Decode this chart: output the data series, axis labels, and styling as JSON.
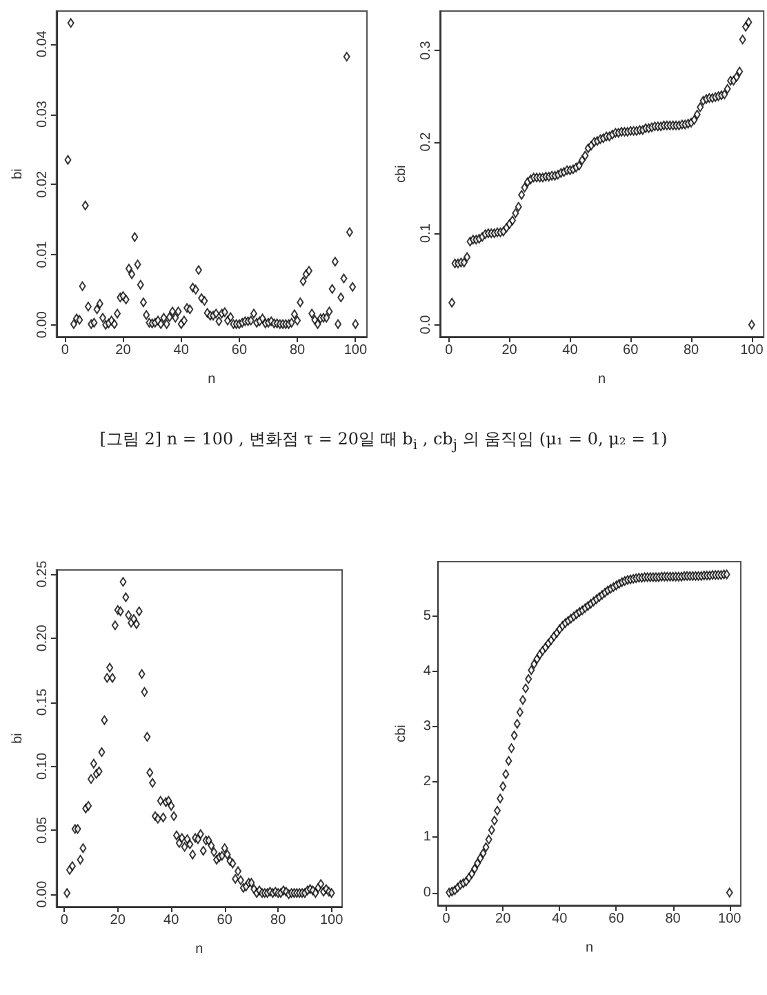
{
  "chart_data": [
    {
      "type": "scatter",
      "xlabel": "n",
      "ylabel": "bi",
      "marker": "diamond",
      "grid": false,
      "annotations": [
        "[그림 2]  n = 100 , 변화점 τ = 20일 때   b$_{i}$ , cb$_{j}$ 의 움직임 (μ₁ = 0, μ₂ = 1)"
      ],
      "xlim": [
        -2.96,
        103.96
      ],
      "xticks": [
        0,
        20,
        40,
        60,
        80,
        100
      ],
      "ylim": [
        -0.0017,
        0.0447
      ],
      "yticks": [
        {
          "value": 0,
          "label": "0.00"
        },
        {
          "value": 0.01,
          "label": "0.01"
        },
        {
          "value": 0.02,
          "label": "0.02"
        },
        {
          "value": 0.03,
          "label": "0.03"
        },
        {
          "value": 0.04,
          "label": "0.04"
        }
      ],
      "x": [
        1,
        2,
        3,
        4,
        5,
        6,
        7,
        8,
        9,
        10,
        11,
        12,
        13,
        14,
        15,
        16,
        17,
        18,
        19,
        20,
        21,
        22,
        23,
        24,
        25,
        26,
        27,
        28,
        29,
        30,
        31,
        32,
        33,
        34,
        35,
        36,
        37,
        38,
        39,
        40,
        41,
        42,
        43,
        44,
        45,
        46,
        47,
        48,
        49,
        50,
        51,
        52,
        53,
        54,
        55,
        56,
        57,
        58,
        59,
        60,
        61,
        62,
        63,
        64,
        65,
        66,
        67,
        68,
        69,
        70,
        71,
        72,
        73,
        74,
        75,
        76,
        77,
        78,
        79,
        80,
        81,
        82,
        83,
        84,
        85,
        86,
        87,
        88,
        89,
        90,
        91,
        92,
        93,
        94,
        95,
        96,
        97,
        98,
        99,
        100
      ],
      "series": [
        {
          "color": "#000000",
          "values": [
            0.0235,
            0.043,
            0.0001,
            0.0009,
            0.0007,
            0.0055,
            0.017,
            0.0026,
            0.0001,
            0.0003,
            0.0022,
            0.003,
            0.001,
            0,
            0.0002,
            0.0006,
            0.0001,
            0.0016,
            0.0039,
            0.0041,
            0.0036,
            0.008,
            0.0072,
            0.0125,
            0.0086,
            0.0057,
            0.0032,
            0.0014,
            0.0003,
            0.0002,
            0.0003,
            0.0006,
            0.0001,
            0.001,
            0.0001,
            0.0011,
            0.0019,
            0.001,
            0.0019,
            0.0001,
            0.0006,
            0.0024,
            0.0022,
            0.0053,
            0.005,
            0.0078,
            0.0038,
            0.0034,
            0.0017,
            0.0013,
            0.0013,
            0.0016,
            0.0005,
            0.0016,
            0.0018,
            0.0006,
            0.0011,
            0.0001,
            0.0001,
            0.0001,
            0.0003,
            0.0005,
            0.0005,
            0.0006,
            0.0016,
            0.0003,
            0.0005,
            0.0009,
            0.0002,
            0.0003,
            0.0005,
            0.0002,
            0.0002,
            0.0001,
            0.0001,
            0.0001,
            0.0001,
            0.0003,
            0.0015,
            0.0006,
            0.0032,
            0.0062,
            0.0072,
            0.0077,
            0.0016,
            0.0007,
            0.0001,
            0.0009,
            0.001,
            0.001,
            0.0019,
            0.0051,
            0.009,
            0.0001,
            0.0039,
            0.0066,
            0.0382,
            0.0132,
            0.0054,
            0.0001
          ]
        }
      ]
    },
    {
      "type": "scatter",
      "xlabel": "n",
      "ylabel": "cbi",
      "marker": "diamond",
      "grid": false,
      "xlim": [
        -2.96,
        103.96
      ],
      "xticks": [
        0,
        20,
        40,
        60,
        80,
        100
      ],
      "ylim": [
        -0.0132,
        0.3432
      ],
      "yticks": [
        {
          "value": 0,
          "label": "0.0"
        },
        {
          "value": 0.1,
          "label": "0.1"
        },
        {
          "value": 0.2,
          "label": "0.2"
        },
        {
          "value": 0.3,
          "label": "0.3"
        }
      ],
      "x": [
        1,
        2,
        3,
        4,
        5,
        6,
        7,
        8,
        9,
        10,
        11,
        12,
        13,
        14,
        15,
        16,
        17,
        18,
        19,
        20,
        21,
        22,
        23,
        24,
        25,
        26,
        27,
        28,
        29,
        30,
        31,
        32,
        33,
        34,
        35,
        36,
        37,
        38,
        39,
        40,
        41,
        42,
        43,
        44,
        45,
        46,
        47,
        48,
        49,
        50,
        51,
        52,
        53,
        54,
        55,
        56,
        57,
        58,
        59,
        60,
        61,
        62,
        63,
        64,
        65,
        66,
        67,
        68,
        69,
        70,
        71,
        72,
        73,
        74,
        75,
        76,
        77,
        78,
        79,
        80,
        81,
        82,
        83,
        84,
        85,
        86,
        87,
        88,
        89,
        90,
        91,
        92,
        93,
        94,
        95,
        96,
        97,
        98,
        99,
        100
      ],
      "series": [
        {
          "color": "#000000",
          "values": [
            0.024,
            0.067,
            0.067,
            0.068,
            0.068,
            0.074,
            0.091,
            0.093,
            0.093,
            0.094,
            0.096,
            0.099,
            0.1,
            0.1,
            0.1,
            0.101,
            0.101,
            0.102,
            0.106,
            0.11,
            0.114,
            0.122,
            0.129,
            0.142,
            0.15,
            0.156,
            0.159,
            0.161,
            0.161,
            0.161,
            0.161,
            0.162,
            0.162,
            0.163,
            0.163,
            0.164,
            0.166,
            0.167,
            0.169,
            0.169,
            0.17,
            0.172,
            0.174,
            0.18,
            0.185,
            0.193,
            0.196,
            0.2,
            0.201,
            0.203,
            0.204,
            0.206,
            0.206,
            0.208,
            0.21,
            0.21,
            0.211,
            0.211,
            0.211,
            0.212,
            0.212,
            0.212,
            0.213,
            0.213,
            0.215,
            0.215,
            0.216,
            0.217,
            0.217,
            0.217,
            0.218,
            0.218,
            0.218,
            0.218,
            0.218,
            0.218,
            0.219,
            0.219,
            0.22,
            0.221,
            0.224,
            0.23,
            0.238,
            0.245,
            0.247,
            0.248,
            0.248,
            0.249,
            0.25,
            0.251,
            0.252,
            0.258,
            0.267,
            0.267,
            0.271,
            0.277,
            0.312,
            0.326,
            0.331,
            0
          ]
        }
      ]
    },
    {
      "type": "scatter",
      "xlabel": "n",
      "ylabel": "bi",
      "marker": "diamond",
      "grid": false,
      "xlim": [
        -2.96,
        103.96
      ],
      "xticks": [
        0,
        20,
        40,
        60,
        80,
        100
      ],
      "ylim": [
        -0.0097,
        0.2533
      ],
      "yticks": [
        {
          "value": 0,
          "label": "0.00"
        },
        {
          "value": 0.05,
          "label": "0.05"
        },
        {
          "value": 0.1,
          "label": "0.10"
        },
        {
          "value": 0.15,
          "label": "0.15"
        },
        {
          "value": 0.2,
          "label": "0.20"
        },
        {
          "value": 0.25,
          "label": "0.25"
        }
      ],
      "x": [
        1,
        2,
        3,
        4,
        5,
        6,
        7,
        8,
        9,
        10,
        11,
        12,
        13,
        14,
        15,
        16,
        17,
        18,
        19,
        20,
        21,
        22,
        23,
        24,
        25,
        26,
        27,
        28,
        29,
        30,
        31,
        32,
        33,
        34,
        35,
        36,
        37,
        38,
        39,
        40,
        41,
        42,
        43,
        44,
        45,
        46,
        47,
        48,
        49,
        50,
        51,
        52,
        53,
        54,
        55,
        56,
        57,
        58,
        59,
        60,
        61,
        62,
        63,
        64,
        65,
        66,
        67,
        68,
        69,
        70,
        71,
        72,
        73,
        74,
        75,
        76,
        77,
        78,
        79,
        80,
        81,
        82,
        83,
        84,
        85,
        86,
        87,
        88,
        89,
        90,
        91,
        92,
        93,
        94,
        95,
        96,
        97,
        98,
        99,
        100
      ],
      "series": [
        {
          "color": "#000000",
          "values": [
            0.001,
            0.019,
            0.022,
            0.051,
            0.051,
            0.027,
            0.036,
            0.067,
            0.069,
            0.09,
            0.102,
            0.094,
            0.096,
            0.111,
            0.136,
            0.169,
            0.177,
            0.169,
            0.21,
            0.222,
            0.221,
            0.244,
            0.232,
            0.218,
            0.212,
            0.215,
            0.211,
            0.221,
            0.172,
            0.158,
            0.123,
            0.095,
            0.087,
            0.061,
            0.059,
            0.073,
            0.06,
            0.072,
            0.073,
            0.069,
            0.061,
            0.046,
            0.04,
            0.044,
            0.037,
            0.043,
            0.039,
            0.031,
            0.044,
            0.043,
            0.047,
            0.034,
            0.042,
            0.042,
            0.038,
            0.033,
            0.027,
            0.029,
            0.03,
            0.036,
            0.031,
            0.026,
            0.024,
            0.012,
            0.018,
            0.011,
            0.005,
            0.006,
            0.009,
            0.009,
            0.004,
            0.001,
            0.003,
            0.001,
            0.001,
            0.001,
            0.002,
            0.001,
            0.002,
            0.001,
            0.001,
            0.003,
            0.002,
            0,
            0.001,
            0.001,
            0.001,
            0.001,
            0.001,
            0.001,
            0.003,
            0.004,
            0.003,
            0.001,
            0.005,
            0.008,
            0.002,
            0.004,
            0.002,
            0.001
          ]
        }
      ]
    },
    {
      "type": "scatter",
      "xlabel": "n",
      "ylabel": "cbi",
      "marker": "diamond",
      "grid": false,
      "xlim": [
        -2.96,
        103.96
      ],
      "xticks": [
        0,
        20,
        40,
        60,
        80,
        100
      ],
      "ylim": [
        -0.23,
        5.98
      ],
      "yticks": [
        0,
        1,
        2,
        3,
        4,
        5
      ],
      "x": [
        1,
        2,
        3,
        4,
        5,
        6,
        7,
        8,
        9,
        10,
        11,
        12,
        13,
        14,
        15,
        16,
        17,
        18,
        19,
        20,
        21,
        22,
        23,
        24,
        25,
        26,
        27,
        28,
        29,
        30,
        31,
        32,
        33,
        34,
        35,
        36,
        37,
        38,
        39,
        40,
        41,
        42,
        43,
        44,
        45,
        46,
        47,
        48,
        49,
        50,
        51,
        52,
        53,
        54,
        55,
        56,
        57,
        58,
        59,
        60,
        61,
        62,
        63,
        64,
        65,
        66,
        67,
        68,
        69,
        70,
        71,
        72,
        73,
        74,
        75,
        76,
        77,
        78,
        79,
        80,
        81,
        82,
        83,
        84,
        85,
        86,
        87,
        88,
        89,
        90,
        91,
        92,
        93,
        94,
        95,
        96,
        97,
        98,
        99,
        100
      ],
      "series": [
        {
          "color": "#000000",
          "values": [
            0,
            0.02,
            0.04,
            0.09,
            0.14,
            0.17,
            0.2,
            0.27,
            0.34,
            0.43,
            0.53,
            0.62,
            0.71,
            0.82,
            0.96,
            1.13,
            1.3,
            1.48,
            1.7,
            1.92,
            2.14,
            2.38,
            2.61,
            2.84,
            3.05,
            3.26,
            3.48,
            3.69,
            3.86,
            4.02,
            4.13,
            4.22,
            4.3,
            4.37,
            4.43,
            4.5,
            4.56,
            4.63,
            4.69,
            4.76,
            4.82,
            4.87,
            4.91,
            4.95,
            4.99,
            5.03,
            5.07,
            5.1,
            5.14,
            5.18,
            5.22,
            5.26,
            5.3,
            5.34,
            5.38,
            5.42,
            5.46,
            5.49,
            5.52,
            5.55,
            5.58,
            5.61,
            5.63,
            5.65,
            5.66,
            5.67,
            5.68,
            5.69,
            5.69,
            5.7,
            5.7,
            5.7,
            5.7,
            5.7,
            5.7,
            5.71,
            5.71,
            5.71,
            5.71,
            5.71,
            5.71,
            5.71,
            5.71,
            5.72,
            5.72,
            5.72,
            5.72,
            5.72,
            5.72,
            5.72,
            5.73,
            5.73,
            5.73,
            5.74,
            5.74,
            5.74,
            5.74,
            5.75,
            5.75,
            0
          ]
        }
      ]
    }
  ]
}
